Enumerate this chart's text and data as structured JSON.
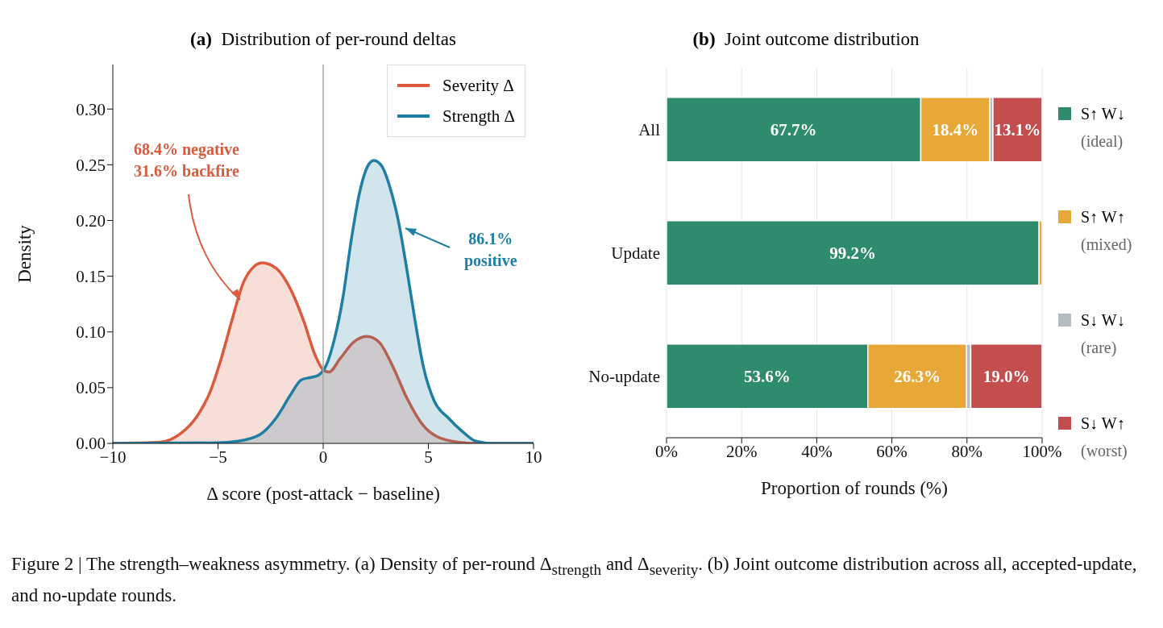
{
  "chart_data": [
    {
      "type": "area",
      "title": "(a)  Distribution of per-round deltas",
      "xlabel": "Δ score (post-attack − baseline)",
      "ylabel": "Density",
      "xlim": [
        -10,
        10
      ],
      "xticks": [
        {
          "value": -10,
          "label": "−10"
        },
        {
          "value": -5,
          "label": "−5"
        },
        0,
        5,
        10
      ],
      "ylim": [
        0,
        0.34
      ],
      "yticks": [
        {
          "value": 0,
          "label": "0.00"
        },
        {
          "value": 0.05,
          "label": "0.05"
        },
        {
          "value": 0.1,
          "label": "0.10"
        },
        {
          "value": 0.15,
          "label": "0.15"
        },
        {
          "value": 0.2,
          "label": "0.20"
        },
        {
          "value": 0.25,
          "label": "0.25"
        },
        {
          "value": 0.3,
          "label": "0.30"
        }
      ],
      "legend": "top right",
      "ref_lines": [
        {
          "axis": "x",
          "value": 0,
          "color": "#aaaaaa"
        }
      ],
      "series": [
        {
          "name": "Severity Δ",
          "color": "#dc5a3c",
          "x": [
            -10,
            -7.76,
            -6.84,
            -6.05,
            -5.38,
            -4.85,
            -4.33,
            -3.8,
            -3.27,
            -2.9,
            -2.23,
            -1.57,
            -0.91,
            -0.38,
            0,
            0.28,
            0.8,
            1.46,
            2.06,
            2.65,
            3.31,
            3.97,
            4.76,
            5.42,
            6.47,
            7.4,
            10
          ],
          "values": [
            0,
            0.001,
            0.008,
            0.023,
            0.046,
            0.076,
            0.111,
            0.144,
            0.159,
            0.162,
            0.157,
            0.139,
            0.109,
            0.079,
            0.066,
            0.064,
            0.076,
            0.091,
            0.096,
            0.091,
            0.069,
            0.041,
            0.016,
            0.006,
            0.001,
            0,
            0
          ]
        },
        {
          "name": "Strength Δ",
          "color": "#1f7fa3",
          "x": [
            -10,
            -5.1,
            -4.06,
            -3,
            -2.23,
            -1.57,
            -1.04,
            -0.65,
            -0.25,
            0.14,
            0.54,
            0.94,
            1.33,
            1.73,
            2.12,
            2.41,
            2.78,
            3.17,
            3.57,
            3.97,
            4.36,
            4.76,
            5.28,
            5.94,
            6.6,
            7.26,
            8.05,
            10
          ],
          "values": [
            0,
            0.0005,
            0.002,
            0.008,
            0.023,
            0.043,
            0.057,
            0.059,
            0.061,
            0.07,
            0.094,
            0.131,
            0.182,
            0.225,
            0.249,
            0.254,
            0.249,
            0.23,
            0.2,
            0.157,
            0.111,
            0.069,
            0.038,
            0.023,
            0.011,
            0.002,
            0,
            0
          ]
        }
      ],
      "annotations": [
        {
          "text": "68.4% negative\n31.6% backfire",
          "x": -3.93,
          "y": 0.129
        },
        {
          "text": "86.1%\npositive",
          "x": 3.9,
          "y": 0.193
        },
        "Figure 2 | The strength–weakness asymmetry. (a) Density of per-round Δ$_{strength}$ and Δ$_{severity}$. (b) Joint outcome distribution across all, accepted-update, and no-update rounds."
      ]
    },
    {
      "type": "bar",
      "orientation": "horizontal",
      "stacked": true,
      "title": "(b)  Joint outcome distribution",
      "xlabel": "Proportion of rounds (%)",
      "categories": [
        "All",
        "Update",
        "No-update"
      ],
      "xlim": [
        0,
        100
      ],
      "xticks": [
        {
          "value": 0,
          "label": "0%"
        },
        {
          "value": 20,
          "label": "20%"
        },
        {
          "value": 40,
          "label": "40%"
        },
        {
          "value": 60,
          "label": "60%"
        },
        {
          "value": 80,
          "label": "80%"
        },
        {
          "value": 100,
          "label": "100%"
        }
      ],
      "grid": "x",
      "legend": "right",
      "series": [
        {
          "name": "S↑ W↓\n(ideal)",
          "color": "#2e8b6e",
          "values": [
            67.7,
            99.2,
            53.6
          ],
          "value_labels": [
            "67.7%",
            "99.2%",
            "53.6%"
          ]
        },
        {
          "name": "S↑ W↑\n(mixed)",
          "color": "#e8a838",
          "values": [
            18.4,
            0.8,
            26.3
          ],
          "value_labels": [
            "18.4%",
            null,
            "26.3%"
          ]
        },
        {
          "name": "S↓ W↓\n(rare)",
          "color": "#b4bcc4",
          "values": [
            0.8,
            0,
            1.1
          ],
          "value_labels": [
            null,
            null,
            null
          ]
        },
        {
          "name": "S↓ W↑\n(worst)",
          "color": "#c44e4e",
          "values": [
            13.1,
            0,
            19.0
          ],
          "value_labels": [
            "13.1%",
            null,
            "19.0%"
          ]
        }
      ]
    }
  ]
}
